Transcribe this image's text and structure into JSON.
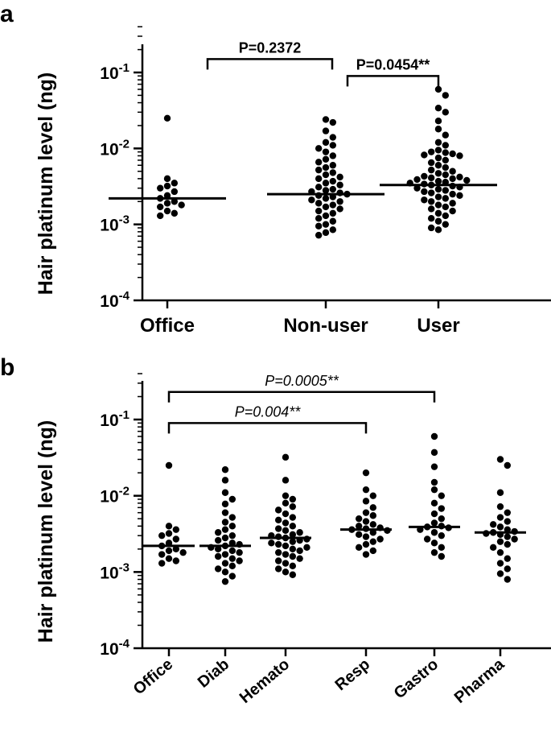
{
  "chart_data": [
    {
      "panel": "a",
      "type": "scatter",
      "ylabel": "Hair platinum level (ng)",
      "yscale": "log",
      "ylim": [
        0.0001,
        0.4
      ],
      "yticks": [
        {
          "value": 0.1,
          "base": "10",
          "exp": "-1"
        },
        {
          "value": 0.01,
          "base": "10",
          "exp": "-2"
        },
        {
          "value": 0.001,
          "base": "10",
          "exp": "-3"
        },
        {
          "value": 0.0001,
          "base": "10",
          "exp": "-4"
        }
      ],
      "categories": [
        "Office",
        "Non-user",
        "User"
      ],
      "medians": [
        0.0022,
        0.0025,
        0.0033
      ],
      "comparisons": [
        {
          "from": 0,
          "to": 1,
          "label": "P=0.2372",
          "y": 0.15
        },
        {
          "from": 1,
          "to": 2,
          "label": "P=0.0454**",
          "y": 0.09
        }
      ],
      "series": [
        {
          "values": [
            0.025,
            0.004,
            0.0035,
            0.0032,
            0.003,
            0.0027,
            0.0024,
            0.0022,
            0.002,
            0.0019,
            0.0018,
            0.0017,
            0.0015,
            0.0014,
            0.0013
          ]
        },
        {
          "values": [
            0.024,
            0.022,
            0.017,
            0.014,
            0.012,
            0.011,
            0.01,
            0.009,
            0.008,
            0.0072,
            0.0066,
            0.006,
            0.0056,
            0.0052,
            0.0048,
            0.0045,
            0.0042,
            0.004,
            0.0037,
            0.0035,
            0.0033,
            0.0031,
            0.0029,
            0.0028,
            0.0027,
            0.0026,
            0.0025,
            0.0024,
            0.0023,
            0.0022,
            0.0021,
            0.002,
            0.0019,
            0.0018,
            0.0017,
            0.0016,
            0.0015,
            0.0014,
            0.0013,
            0.0012,
            0.0011,
            0.001,
            0.00095,
            0.00085,
            0.00078,
            0.00072
          ]
        },
        {
          "values": [
            0.06,
            0.05,
            0.034,
            0.03,
            0.023,
            0.018,
            0.015,
            0.012,
            0.011,
            0.0095,
            0.009,
            0.0088,
            0.0085,
            0.0082,
            0.008,
            0.0075,
            0.007,
            0.0065,
            0.006,
            0.0056,
            0.0052,
            0.005,
            0.0047,
            0.0045,
            0.0043,
            0.0042,
            0.0041,
            0.004,
            0.0039,
            0.0038,
            0.0037,
            0.0036,
            0.0035,
            0.0034,
            0.0033,
            0.0032,
            0.0031,
            0.003,
            0.0029,
            0.0028,
            0.0027,
            0.0026,
            0.0025,
            0.0024,
            0.0023,
            0.0022,
            0.0021,
            0.002,
            0.0019,
            0.0018,
            0.0017,
            0.0016,
            0.0015,
            0.0014,
            0.0013,
            0.0012,
            0.0011,
            0.001,
            0.0009,
            0.00085
          ]
        }
      ]
    },
    {
      "panel": "b",
      "type": "scatter",
      "ylabel": "Hair platinum level (ng)",
      "yscale": "log",
      "ylim": [
        0.0001,
        0.4
      ],
      "yticks": [
        {
          "value": 0.1,
          "base": "10",
          "exp": "-1"
        },
        {
          "value": 0.01,
          "base": "10",
          "exp": "-2"
        },
        {
          "value": 0.001,
          "base": "10",
          "exp": "-3"
        },
        {
          "value": 0.0001,
          "base": "10",
          "exp": "-4"
        }
      ],
      "categories": [
        "Office",
        "Diab",
        "Hemato",
        "Resp",
        "Gastro",
        "Pharma"
      ],
      "medians": [
        0.0022,
        0.0022,
        0.0028,
        0.0036,
        0.0039,
        0.0033
      ],
      "comparisons": [
        {
          "from": 0,
          "to": 4,
          "label": "P=0.0005**",
          "y": 0.23
        },
        {
          "from": 0,
          "to": 3,
          "label": "P=0.004**",
          "y": 0.09
        }
      ],
      "series": [
        {
          "values": [
            0.025,
            0.004,
            0.0036,
            0.0032,
            0.003,
            0.0027,
            0.0024,
            0.0022,
            0.002,
            0.0019,
            0.0018,
            0.0017,
            0.0015,
            0.0014,
            0.0013
          ]
        },
        {
          "values": [
            0.022,
            0.016,
            0.011,
            0.009,
            0.0078,
            0.006,
            0.0052,
            0.0045,
            0.004,
            0.0036,
            0.0033,
            0.003,
            0.0028,
            0.0026,
            0.0024,
            0.0023,
            0.0022,
            0.0021,
            0.002,
            0.0019,
            0.0018,
            0.0017,
            0.0016,
            0.0015,
            0.0014,
            0.0013,
            0.0012,
            0.0011,
            0.001,
            0.00088,
            0.00075
          ]
        },
        {
          "values": [
            0.032,
            0.016,
            0.01,
            0.009,
            0.008,
            0.0072,
            0.0065,
            0.0058,
            0.0052,
            0.0048,
            0.0044,
            0.004,
            0.0037,
            0.0035,
            0.0033,
            0.0031,
            0.003,
            0.0029,
            0.0028,
            0.0027,
            0.0026,
            0.0025,
            0.0024,
            0.0023,
            0.0022,
            0.0021,
            0.002,
            0.0019,
            0.0018,
            0.0017,
            0.0016,
            0.0015,
            0.0014,
            0.0013,
            0.0012,
            0.0011,
            0.001,
            0.00092
          ]
        },
        {
          "values": [
            0.02,
            0.012,
            0.01,
            0.0085,
            0.007,
            0.006,
            0.0055,
            0.005,
            0.0046,
            0.0042,
            0.004,
            0.0038,
            0.0037,
            0.0036,
            0.0035,
            0.0033,
            0.0031,
            0.0029,
            0.0027,
            0.0025,
            0.0023,
            0.0021,
            0.0019,
            0.0017
          ]
        },
        {
          "values": [
            0.06,
            0.037,
            0.024,
            0.015,
            0.012,
            0.01,
            0.008,
            0.0068,
            0.0058,
            0.005,
            0.0044,
            0.004,
            0.0039,
            0.0038,
            0.0036,
            0.0033,
            0.003,
            0.0027,
            0.0024,
            0.0021,
            0.0018,
            0.0016
          ]
        },
        {
          "values": [
            0.03,
            0.025,
            0.011,
            0.0072,
            0.006,
            0.0052,
            0.0046,
            0.0042,
            0.0039,
            0.0036,
            0.0034,
            0.0033,
            0.0032,
            0.0031,
            0.0029,
            0.0027,
            0.0025,
            0.0023,
            0.0021,
            0.0018,
            0.0015,
            0.0013,
            0.0011,
            0.00095,
            0.0008
          ]
        }
      ]
    }
  ]
}
